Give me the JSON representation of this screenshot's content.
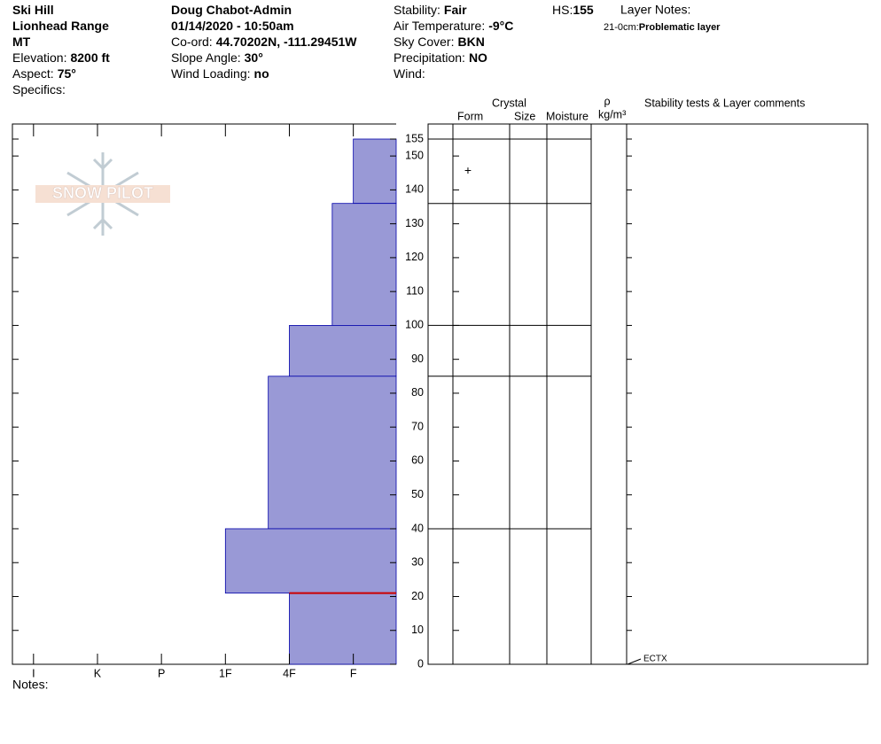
{
  "header": {
    "columns": [
      [
        {
          "value": "Ski Hill"
        },
        {
          "value": "Lionhead Range"
        },
        {
          "value": "MT"
        },
        {
          "label": "Elevation:",
          "value": "8200 ft"
        },
        {
          "label": "Aspect:",
          "value": "75°"
        },
        {
          "label": "Specifics:"
        }
      ],
      [
        {
          "value": "Doug Chabot-Admin"
        },
        {
          "value": "01/14/2020 - 10:50am"
        },
        {
          "label": "Co-ord:",
          "value": "44.70202N, -111.29451W"
        },
        {
          "label": "Slope Angle:",
          "value": "30°"
        },
        {
          "label": "Wind Loading:",
          "value": "no"
        }
      ],
      [
        {
          "label": "Stability:",
          "value": "Fair"
        },
        {
          "label": "Air Temperature:",
          "value": "-9°C"
        },
        {
          "label": "Sky Cover:",
          "value": "BKN"
        },
        {
          "label": "Precipitation:",
          "value": "NO"
        },
        {
          "label": "Wind:"
        }
      ]
    ],
    "hs": {
      "label": "HS:",
      "value": "155"
    },
    "layer_notes": {
      "label": "Layer Notes:",
      "items": [
        {
          "range": "21-0cm:",
          "note": "Problematic layer"
        }
      ]
    }
  },
  "logo": {
    "text": "SNOW PILOT"
  },
  "columns": {
    "crystal": "Crystal",
    "form": "Form",
    "size": "Size",
    "moisture": "Moisture",
    "rho": "ρ",
    "density_unit": "kg/m³",
    "comments": "Stability tests & Layer comments"
  },
  "notes": {
    "label": "Notes:"
  },
  "chart_data": {
    "type": "snow-profile",
    "ylim": [
      0,
      155
    ],
    "yticks": [
      0,
      10,
      20,
      30,
      40,
      50,
      60,
      70,
      80,
      90,
      100,
      110,
      120,
      130,
      140,
      150,
      155
    ],
    "xlim": [
      6.33,
      0.33
    ],
    "xticks": [
      {
        "value": 6,
        "label": "I"
      },
      {
        "value": 5,
        "label": "K"
      },
      {
        "value": 4,
        "label": "P"
      },
      {
        "value": 3,
        "label": "1F"
      },
      {
        "value": 2,
        "label": "4F"
      },
      {
        "value": 1,
        "label": "F"
      }
    ],
    "color": "#9999d6",
    "layers": [
      {
        "top": 155,
        "bottom": 136,
        "hardness": 1,
        "form": "+"
      },
      {
        "top": 136,
        "bottom": 100,
        "hardness": 1.33
      },
      {
        "top": 100,
        "bottom": 85,
        "hardness": 2
      },
      {
        "top": 85,
        "bottom": 40,
        "hardness": 2.33
      },
      {
        "top": 40,
        "bottom": 21,
        "hardness": 3
      },
      {
        "top": 21,
        "bottom": 0,
        "hardness": 2
      }
    ],
    "problem_color": "#cc0000",
    "stability_tests": [
      {
        "depth": 0,
        "result": "ECTX"
      }
    ]
  }
}
